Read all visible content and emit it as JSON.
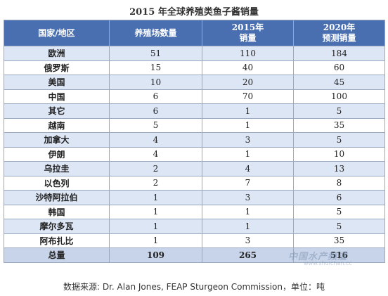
{
  "chart_data": {
    "type": "table",
    "title": "2015 年全球养殖类鱼子酱销量",
    "columns": [
      "国家/地区",
      "养殖场数量",
      "2015年\n销量",
      "2020年\n预测销量"
    ],
    "rows": [
      {
        "name": "欧洲",
        "farms": "51",
        "sales2015": "110",
        "forecast2020": "184"
      },
      {
        "name": "俄罗斯",
        "farms": "15",
        "sales2015": "40",
        "forecast2020": "60"
      },
      {
        "name": "美国",
        "farms": "10",
        "sales2015": "20",
        "forecast2020": "45"
      },
      {
        "name": "中国",
        "farms": "6",
        "sales2015": "70",
        "forecast2020": "100"
      },
      {
        "name": "其它",
        "farms": "6",
        "sales2015": "1",
        "forecast2020": "5"
      },
      {
        "name": "越南",
        "farms": "5",
        "sales2015": "1",
        "forecast2020": "35"
      },
      {
        "name": "加拿大",
        "farms": "4",
        "sales2015": "3",
        "forecast2020": "5"
      },
      {
        "name": "伊朗",
        "farms": "4",
        "sales2015": "1",
        "forecast2020": "10"
      },
      {
        "name": "乌拉圭",
        "farms": "2",
        "sales2015": "4",
        "forecast2020": "13"
      },
      {
        "name": "以色列",
        "farms": "2",
        "sales2015": "7",
        "forecast2020": "8"
      },
      {
        "name": "沙特阿拉伯",
        "farms": "1",
        "sales2015": "3",
        "forecast2020": "6"
      },
      {
        "name": "韩国",
        "farms": "1",
        "sales2015": "1",
        "forecast2020": "5"
      },
      {
        "name": "摩尔多瓦",
        "farms": "1",
        "sales2015": "1",
        "forecast2020": "5"
      },
      {
        "name": "阿布扎比",
        "farms": "1",
        "sales2015": "3",
        "forecast2020": "35"
      }
    ],
    "total": {
      "name": "总量",
      "farms": "109",
      "sales2015": "265",
      "forecast2020": "516"
    }
  },
  "source": "数据来源: Dr. Alan Jones, FEAP Sturgeon Commission，单位：吨",
  "watermark": {
    "text": "中国水产频道",
    "url": "www.shuichan.cc"
  },
  "colors": {
    "header_bg": "#4a6fb0",
    "row_alt": "#dde6f5",
    "border": "#9aa8bf"
  }
}
